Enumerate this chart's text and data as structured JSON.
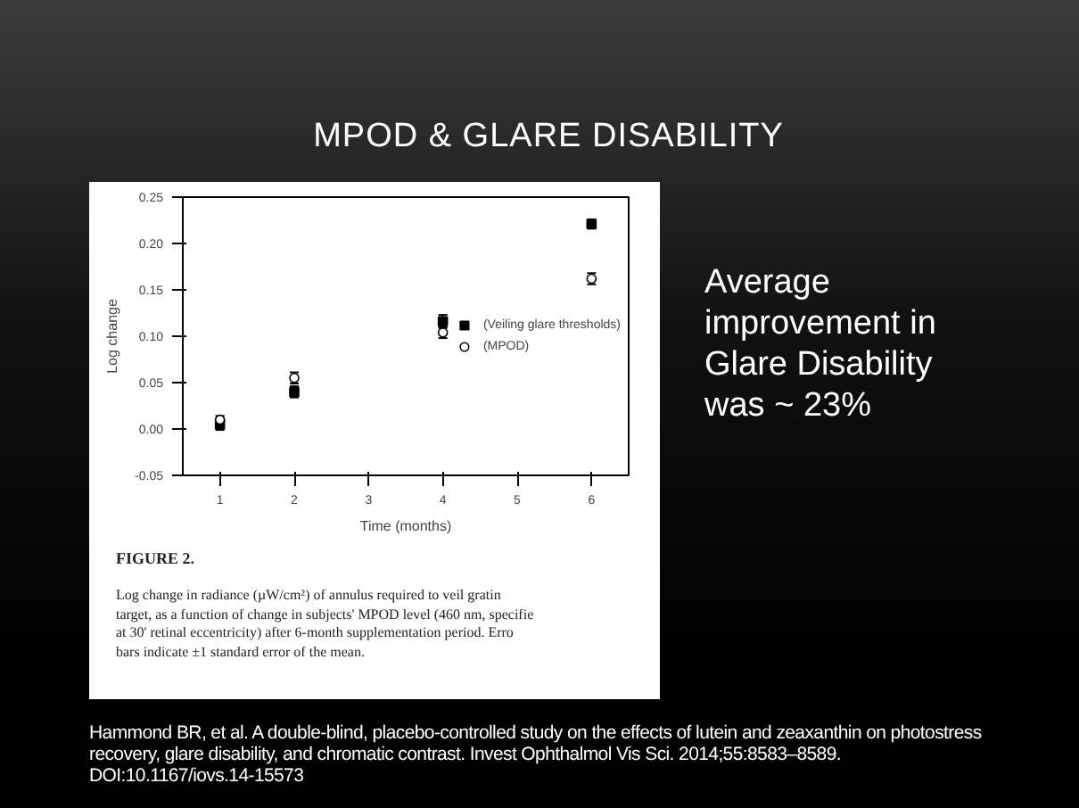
{
  "chart_data": {
    "type": "scatter",
    "title": "MPOD & GLARE DISABILITY",
    "xlabel": "Time (months)",
    "ylabel": "Log change",
    "x": [
      1,
      2,
      4,
      6
    ],
    "series": [
      {
        "name": "(Veiling glare thresholds)",
        "color": "#000000",
        "marker": "square",
        "values": [
          0.005,
          0.04,
          0.116,
          0.221
        ],
        "errors": [
          0.006,
          0.006,
          0.007,
          0.005
        ]
      },
      {
        "name": "(MPOD)",
        "color": "#000000",
        "marker": "circle",
        "values": [
          0.01,
          0.055,
          0.104,
          0.162
        ],
        "errors": [
          0.004,
          0.006,
          0.006,
          0.006
        ]
      }
    ],
    "xlim": [
      0.5,
      6.5
    ],
    "xticks": [
      1,
      2,
      3,
      4,
      5,
      6
    ],
    "ylim": [
      -0.05,
      0.25
    ],
    "yticks": [
      {
        "value": -0.05,
        "label": "-0.05"
      },
      {
        "value": 0,
        "label": "0.00"
      },
      {
        "value": 0.05,
        "label": "0.05"
      },
      {
        "value": 0.1,
        "label": "0.10"
      },
      {
        "value": 0.15,
        "label": "0.15"
      },
      {
        "value": 0.2,
        "label": "0.20"
      },
      {
        "value": 0.25,
        "label": "0.25"
      }
    ],
    "grid": false,
    "legend": "right",
    "annotations": [
      "FIGURE 2.",
      "Log change in radiance (µW/cm²) of annulus required to veil gratin\ntarget, as a function of change in subjects' MPOD level (460 nm, specifie\nat 30' retinal eccentricity) after 6-month supplementation period. Erro\nbars indicate ±1 standard error of the mean.",
      "Average improvement in Glare Disability was ~ 23%",
      "Hammond BR, et al. A double-blind, placebo-controlled study on the effects of lutein and zeaxanthin on photostress recovery, glare disability, and chromatic contrast. Invest Ophthalmol Vis Sci. 2014;55:8583–8589. DOI:10.1167/iovs.14-15573"
    ]
  }
}
